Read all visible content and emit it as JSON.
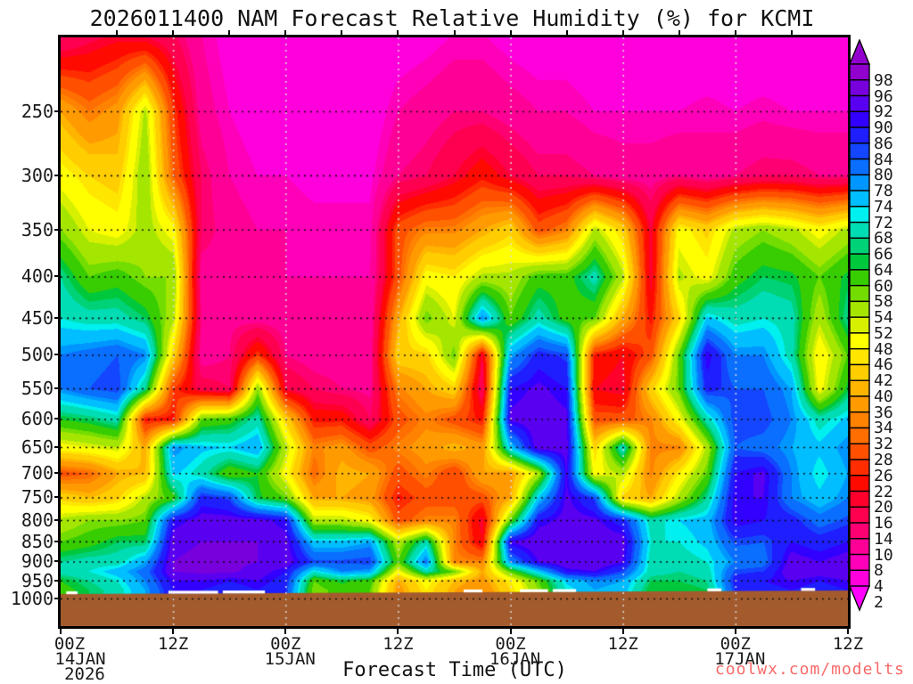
{
  "page": {
    "background": "#FFFFFF"
  },
  "chart_data": {
    "type": "heatmap",
    "title": "2026011400 NAM Forecast Relative Humidity (%) for KCMI",
    "xlabel": "Forecast Time (UTC)",
    "ylabel_units": "hPa",
    "y_scale": "log-pressure",
    "x_range_hours": [
      0,
      84
    ],
    "y_ticks": [
      250,
      300,
      350,
      400,
      450,
      500,
      550,
      600,
      650,
      700,
      750,
      800,
      850,
      900,
      950,
      1000
    ],
    "x_ticks": [
      {
        "hour": 0,
        "label": "00Z",
        "date": "14JAN",
        "year": "2026"
      },
      {
        "hour": 12,
        "label": "12Z"
      },
      {
        "hour": 24,
        "label": "00Z",
        "date": "15JAN"
      },
      {
        "hour": 36,
        "label": "12Z"
      },
      {
        "hour": 48,
        "label": "00Z",
        "date": "16JAN"
      },
      {
        "hour": 60,
        "label": "12Z"
      },
      {
        "hour": 72,
        "label": "00Z",
        "date": "17JAN"
      },
      {
        "hour": 84,
        "label": "12Z"
      }
    ],
    "grid": {
      "horizontal": "dotted-black-every-50hPa",
      "vertical": "dotted-gray-every-12h"
    },
    "colorbar": {
      "levels": [
        2,
        4,
        8,
        10,
        14,
        16,
        20,
        22,
        26,
        28,
        32,
        34,
        36,
        40,
        42,
        46,
        48,
        52,
        54,
        58,
        60,
        64,
        66,
        68,
        72,
        74,
        78,
        80,
        84,
        86,
        90,
        92,
        96,
        98
      ],
      "colors": [
        "#FF00FF",
        "#FC00F2",
        "#FF00DC",
        "#FF00B9",
        "#FF0096",
        "#FF0073",
        "#FF0050",
        "#FF002D",
        "#FF0A00",
        "#FF2D00",
        "#FF5000",
        "#FF6E00",
        "#FF8200",
        "#FF9B00",
        "#FFB400",
        "#FFCD00",
        "#FFE600",
        "#FFFF00",
        "#D7F000",
        "#A5E600",
        "#73DC00",
        "#37CD00",
        "#00C83C",
        "#00D278",
        "#00DCB4",
        "#00F0F0",
        "#00BEFF",
        "#0096FF",
        "#0A6EFF",
        "#1446FF",
        "#1E1EFF",
        "#3200FF",
        "#5A00F0",
        "#7800DC",
        "#9100CD"
      ],
      "arrow_top": true,
      "arrow_bottom": true
    },
    "surface": {
      "color": "#A35B2D",
      "top_hpa": 985,
      "meaning": "below-ground terrain band",
      "gaps_hours": [
        [
          0.6,
          1.8
        ],
        [
          11.5,
          16.8
        ],
        [
          17.3,
          21.8
        ],
        [
          43,
          45
        ],
        [
          49,
          52
        ],
        [
          52.5,
          55
        ],
        [
          69,
          70.5
        ],
        [
          79,
          80.5
        ]
      ]
    },
    "watermark": {
      "text": "coolwx.com/modelts",
      "color": "#F96A6A"
    },
    "field": {
      "hours": [
        0,
        3,
        6,
        9,
        12,
        15,
        18,
        21,
        24,
        27,
        30,
        33,
        36,
        39,
        42,
        45,
        48,
        51,
        54,
        57,
        60,
        63,
        66,
        69,
        72,
        75,
        78,
        81,
        84
      ],
      "pressures_hpa": [
        200,
        250,
        300,
        350,
        400,
        450,
        500,
        550,
        600,
        650,
        700,
        750,
        800,
        850,
        900,
        925,
        950,
        975
      ],
      "rh_percent": [
        [
          14,
          18,
          20,
          18,
          16,
          10,
          6,
          5,
          4,
          4,
          4,
          4,
          5,
          6,
          8,
          8,
          6,
          5,
          5,
          4,
          4,
          4,
          4,
          4,
          4,
          4,
          4,
          4,
          4
        ],
        [
          40,
          34,
          38,
          55,
          28,
          12,
          8,
          6,
          6,
          5,
          5,
          5,
          10,
          12,
          14,
          14,
          12,
          10,
          10,
          8,
          8,
          8,
          8,
          9,
          8,
          9,
          8,
          8,
          8
        ],
        [
          50,
          46,
          44,
          58,
          32,
          16,
          10,
          8,
          8,
          7,
          7,
          7,
          14,
          16,
          20,
          25,
          20,
          16,
          16,
          14,
          12,
          12,
          14,
          12,
          14,
          16,
          16,
          14,
          14
        ],
        [
          58,
          52,
          50,
          56,
          50,
          16,
          12,
          10,
          10,
          9,
          9,
          9,
          30,
          35,
          35,
          40,
          45,
          30,
          35,
          55,
          45,
          20,
          50,
          45,
          55,
          58,
          55,
          50,
          55
        ],
        [
          68,
          60,
          62,
          58,
          58,
          12,
          12,
          12,
          10,
          10,
          10,
          10,
          30,
          50,
          48,
          55,
          55,
          62,
          62,
          70,
          55,
          20,
          55,
          50,
          62,
          66,
          65,
          60,
          65
        ],
        [
          72,
          70,
          70,
          66,
          55,
          14,
          13,
          12,
          12,
          11,
          11,
          11,
          40,
          60,
          52,
          80,
          60,
          70,
          62,
          60,
          40,
          25,
          45,
          75,
          70,
          72,
          70,
          55,
          68
        ],
        [
          80,
          82,
          84,
          80,
          45,
          12,
          14,
          28,
          14,
          12,
          12,
          12,
          45,
          45,
          60,
          20,
          78,
          88,
          85,
          25,
          22,
          30,
          60,
          92,
          80,
          80,
          70,
          48,
          60
        ],
        [
          80,
          84,
          86,
          68,
          28,
          18,
          16,
          58,
          20,
          16,
          14,
          13,
          35,
          40,
          45,
          16,
          90,
          93,
          90,
          22,
          20,
          45,
          60,
          88,
          84,
          84,
          78,
          50,
          65
        ],
        [
          64,
          66,
          70,
          25,
          25,
          60,
          62,
          70,
          45,
          25,
          25,
          16,
          30,
          35,
          30,
          25,
          93,
          95,
          93,
          30,
          30,
          35,
          50,
          70,
          86,
          86,
          80,
          70,
          75
        ],
        [
          50,
          52,
          54,
          40,
          80,
          75,
          74,
          78,
          55,
          35,
          38,
          30,
          35,
          38,
          42,
          38,
          75,
          95,
          94,
          45,
          72,
          35,
          35,
          55,
          84,
          82,
          78,
          75,
          80
        ],
        [
          30,
          32,
          40,
          42,
          75,
          70,
          60,
          64,
          50,
          32,
          42,
          40,
          30,
          35,
          28,
          40,
          38,
          55,
          92,
          50,
          55,
          35,
          48,
          60,
          90,
          93,
          80,
          72,
          78
        ],
        [
          45,
          42,
          45,
          55,
          62,
          88,
          85,
          65,
          60,
          40,
          40,
          38,
          25,
          30,
          30,
          30,
          40,
          75,
          93,
          85,
          45,
          40,
          55,
          68,
          92,
          92,
          80,
          75,
          80
        ],
        [
          55,
          58,
          58,
          60,
          90,
          94,
          94,
          94,
          90,
          55,
          55,
          50,
          30,
          35,
          35,
          20,
          60,
          90,
          94,
          93,
          88,
          70,
          74,
          76,
          92,
          90,
          88,
          82,
          85
        ],
        [
          60,
          62,
          66,
          66,
          95,
          96,
          96,
          96,
          94,
          75,
          75,
          78,
          55,
          70,
          35,
          22,
          92,
          96,
          95,
          95,
          94,
          72,
          72,
          75,
          85,
          84,
          90,
          88,
          90
        ],
        [
          68,
          70,
          70,
          78,
          96,
          97,
          97,
          96,
          95,
          85,
          85,
          86,
          60,
          82,
          35,
          35,
          80,
          92,
          96,
          96,
          92,
          70,
          70,
          72,
          80,
          82,
          94,
          92,
          94
        ],
        [
          70,
          72,
          76,
          82,
          96,
          97,
          97,
          94,
          90,
          72,
          80,
          78,
          50,
          70,
          60,
          40,
          60,
          75,
          90,
          92,
          85,
          70,
          68,
          70,
          85,
          86,
          95,
          94,
          95
        ],
        [
          64,
          68,
          72,
          80,
          92,
          92,
          90,
          92,
          88,
          60,
          65,
          62,
          40,
          50,
          42,
          38,
          48,
          60,
          75,
          80,
          78,
          66,
          66,
          68,
          88,
          90,
          92,
          90,
          92
        ],
        [
          62,
          66,
          70,
          78,
          90,
          90,
          88,
          90,
          86,
          58,
          62,
          60,
          38,
          48,
          40,
          36,
          46,
          58,
          72,
          78,
          76,
          64,
          64,
          66,
          86,
          88,
          90,
          88,
          90
        ]
      ]
    }
  }
}
